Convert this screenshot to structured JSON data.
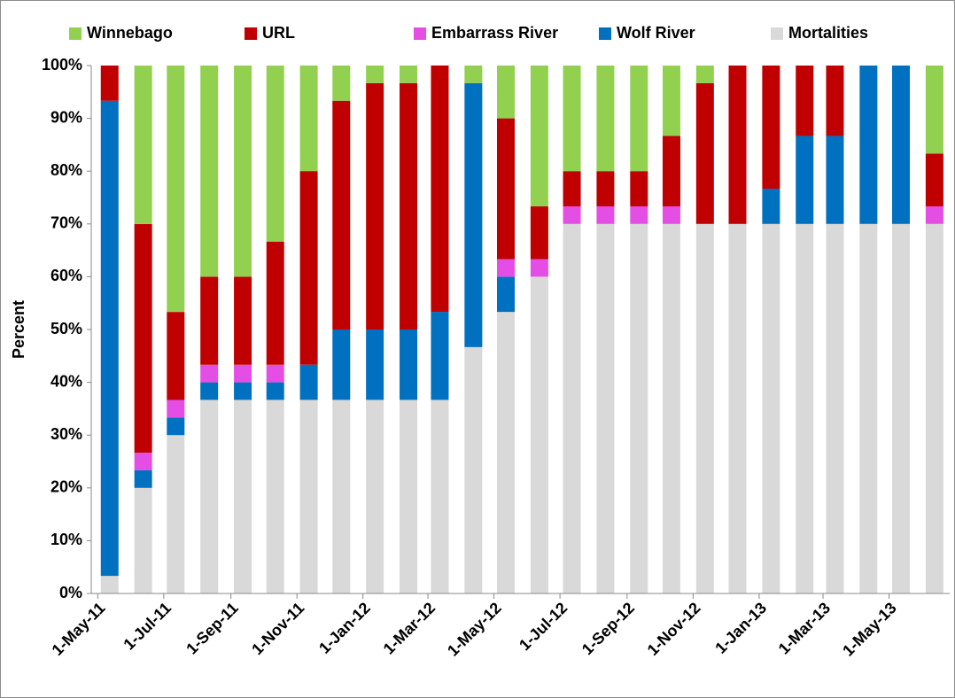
{
  "chart_data": {
    "type": "stacked_bar",
    "y_label": "Percent",
    "x": [
      "2011-05",
      "2011-06",
      "2011-07",
      "2011-08",
      "2011-09",
      "2011-10",
      "2011-11",
      "2011-12",
      "2012-01",
      "2012-02",
      "2012-03",
      "2012-04",
      "2012-05",
      "2012-06",
      "2012-07",
      "2012-08",
      "2012-09",
      "2012-10",
      "2012-11",
      "2012-12",
      "2013-01",
      "2013-02",
      "2013-03",
      "2013-04",
      "2013-05",
      "2013-06"
    ],
    "xlim": [
      "2011-04-25",
      "2013-06-26"
    ],
    "xticks": [
      {
        "value": "2011-05-01",
        "label": "1-May-11"
      },
      {
        "value": "2011-07-01",
        "label": "1-Jul-11"
      },
      {
        "value": "2011-09-01",
        "label": "1-Sep-11"
      },
      {
        "value": "2011-11-01",
        "label": "1-Nov-11"
      },
      {
        "value": "2012-01-01",
        "label": "1-Jan-12"
      },
      {
        "value": "2012-03-01",
        "label": "1-Mar-12"
      },
      {
        "value": "2012-05-01",
        "label": "1-May-12"
      },
      {
        "value": "2012-07-01",
        "label": "1-Jul-12"
      },
      {
        "value": "2012-09-01",
        "label": "1-Sep-12"
      },
      {
        "value": "2012-11-01",
        "label": "1-Nov-12"
      },
      {
        "value": "2013-01-01",
        "label": "1-Jan-13"
      },
      {
        "value": "2013-03-01",
        "label": "1-Mar-13"
      },
      {
        "value": "2013-05-01",
        "label": "1-May-13"
      }
    ],
    "ylim": [
      0,
      100
    ],
    "yticks": [
      {
        "value": 0,
        "label": "0%"
      },
      {
        "value": 10,
        "label": "10%"
      },
      {
        "value": 20,
        "label": "20%"
      },
      {
        "value": 30,
        "label": "30%"
      },
      {
        "value": 40,
        "label": "40%"
      },
      {
        "value": 50,
        "label": "50%"
      },
      {
        "value": 60,
        "label": "60%"
      },
      {
        "value": 70,
        "label": "70%"
      },
      {
        "value": 80,
        "label": "80%"
      },
      {
        "value": 90,
        "label": "90%"
      },
      {
        "value": 100,
        "label": "100%"
      }
    ],
    "grid": false,
    "legend": "top",
    "series": [
      {
        "name": "Mortalities",
        "color": "#d9d9d9",
        "values": [
          3.33,
          20,
          30,
          36.67,
          36.67,
          36.67,
          36.67,
          36.67,
          36.67,
          36.67,
          36.67,
          46.67,
          53.33,
          60,
          70,
          70,
          70,
          70,
          70,
          70,
          70,
          70,
          70,
          70,
          70,
          70
        ]
      },
      {
        "name": "Wolf River",
        "color": "#0070c0",
        "values": [
          90,
          3.33,
          3.33,
          3.33,
          3.33,
          3.33,
          6.67,
          13.33,
          13.33,
          13.33,
          16.67,
          50,
          6.67,
          0,
          0,
          0,
          0,
          0,
          0,
          0,
          6.67,
          16.67,
          16.67,
          30,
          30,
          0
        ]
      },
      {
        "name": "Embarrass River",
        "color": "#e54ee5",
        "values": [
          0,
          3.33,
          3.33,
          3.33,
          3.33,
          3.33,
          0,
          0,
          0,
          0,
          0,
          0,
          3.33,
          3.33,
          3.33,
          3.33,
          3.33,
          3.33,
          0,
          0,
          0,
          0,
          0,
          0,
          0,
          3.33
        ]
      },
      {
        "name": "URL",
        "color": "#c00000",
        "values": [
          6.67,
          43.33,
          16.67,
          16.67,
          16.67,
          23.33,
          36.67,
          43.33,
          46.67,
          46.67,
          46.67,
          0,
          26.67,
          10,
          6.67,
          6.67,
          6.67,
          13.33,
          26.67,
          30,
          23.33,
          13.33,
          13.33,
          0,
          0,
          10
        ]
      },
      {
        "name": "Winnebago",
        "color": "#92d050",
        "values": [
          0,
          30,
          46.67,
          40,
          40,
          33.33,
          20,
          6.67,
          3.33,
          3.33,
          0,
          3.33,
          10,
          26.67,
          20,
          20,
          20,
          13.33,
          3.33,
          0,
          0,
          0,
          0,
          0,
          0,
          16.67
        ]
      }
    ]
  }
}
